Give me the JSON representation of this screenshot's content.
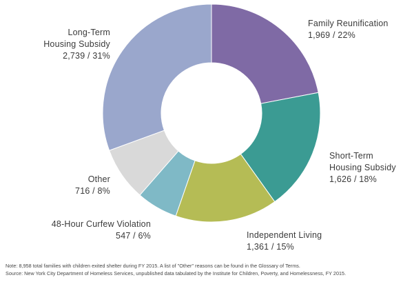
{
  "chart_data": {
    "type": "pie",
    "donut": true,
    "categories": [
      "Family Reunification",
      "Short-Term Housing Subsidy",
      "Independent Living",
      "48-Hour Curfew Violation",
      "Other",
      "Long-Term Housing Subsidy"
    ],
    "values": [
      1969,
      1626,
      1361,
      547,
      716,
      2739
    ],
    "percent_labels": [
      "22%",
      "18%",
      "15%",
      "6%",
      "8%",
      "31%"
    ],
    "value_labels": [
      "1,969 / 22%",
      "1,626 / 18%",
      "1,361 / 15%",
      "547 / 6%",
      "716 / 8%",
      "2,739 / 31%"
    ],
    "label_lines": [
      [
        "Family Reunification",
        "1,969 / 22%"
      ],
      [
        "Short-Term",
        "Housing Subsidy",
        "1,626 / 18%"
      ],
      [
        "Independent Living",
        "1,361 / 15%"
      ],
      [
        "48-Hour Curfew Violation",
        "547 / 6%"
      ],
      [
        "Other",
        "716 / 8%"
      ],
      [
        "Long-Term",
        "Housing Subsidy",
        "2,739 / 31%"
      ]
    ],
    "colors": [
      "#7f6aa5",
      "#3b9b93",
      "#b5bc55",
      "#7fb9c6",
      "#d9d9d9",
      "#9aa7cc"
    ]
  },
  "notes": {
    "note": "Note: 8,958 total families with children exited shelter during FY 2015. A list of \"Other\" reasons can be found in the Glossary of Terms.",
    "source": "Source: New York City Department of Homeless Services, unpublished data tabulated by the Institute for Children, Poverty, and Homelessness, FY 2015."
  }
}
